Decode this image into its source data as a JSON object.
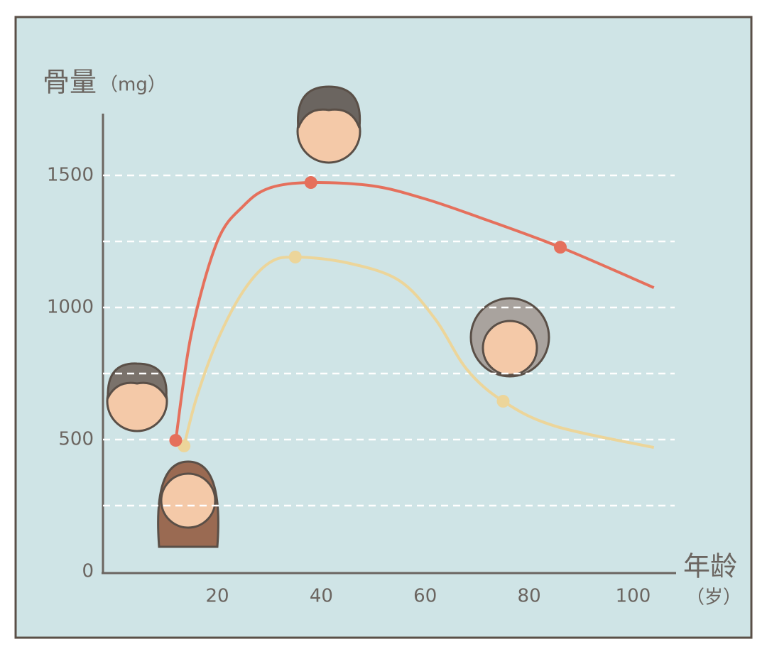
{
  "chart_data": {
    "type": "line",
    "y_label": "骨量",
    "y_unit": "（mg）",
    "x_label": "年龄",
    "x_unit": "（岁）",
    "xlim": [
      -2,
      108
    ],
    "xticks": [
      20,
      40,
      60,
      80,
      100
    ],
    "ylim": [
      0,
      1750
    ],
    "yticks": [
      0,
      500,
      1000,
      1500
    ],
    "minor_yticks": [
      250,
      750,
      1250,
      1500,
      1000,
      500
    ],
    "grid": true,
    "series": [
      {
        "name": "男性",
        "color": "#e5705c",
        "x": [
          12,
          15,
          20,
          25,
          30,
          38,
          50,
          60,
          70,
          86,
          104
        ],
        "values": [
          497,
          900,
          1250,
          1384,
          1452,
          1473,
          1460,
          1411,
          1344,
          1228,
          1075
        ],
        "marked": [
          0,
          5,
          9
        ]
      },
      {
        "name": "女性",
        "color": "#ecd59a",
        "x": [
          13.6,
          16,
          20,
          25,
          30,
          35,
          45,
          55,
          62,
          68,
          75,
          85,
          104
        ],
        "values": [
          476,
          658,
          874,
          1062,
          1169,
          1191,
          1169,
          1102,
          954,
          766,
          645,
          551,
          470
        ],
        "marked": [
          0,
          5,
          10
        ]
      }
    ]
  }
}
